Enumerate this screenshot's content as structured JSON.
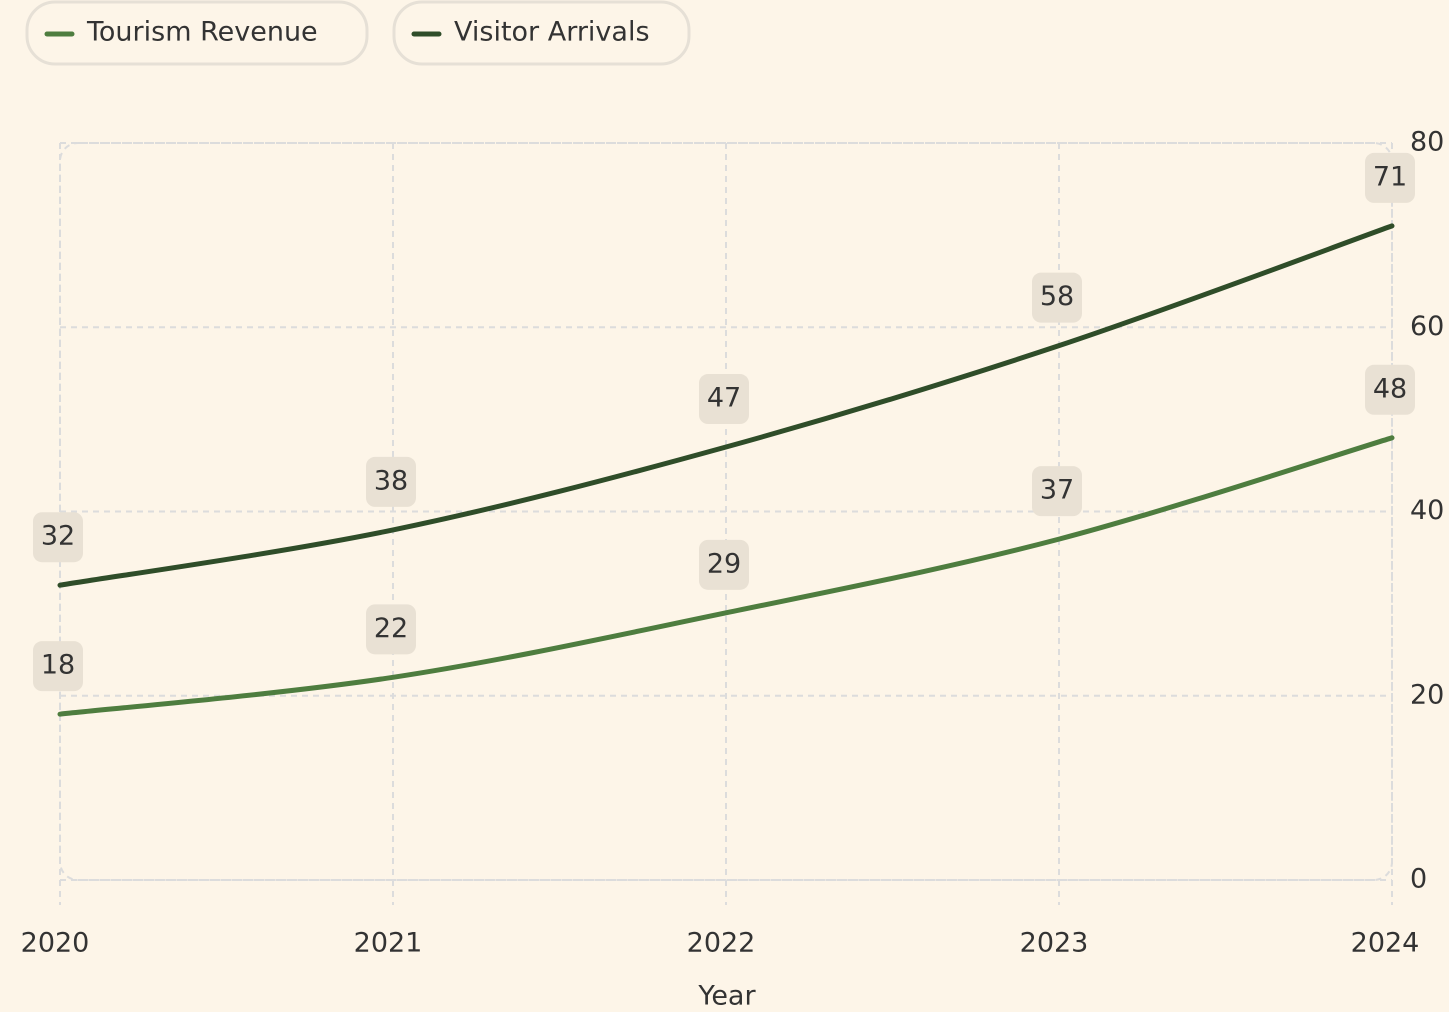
{
  "chart_data": {
    "type": "line",
    "x_label": "Year",
    "categories": [
      "2020",
      "2021",
      "2022",
      "2023",
      "2024"
    ],
    "series": [
      {
        "name": "Tourism Revenue",
        "color": "#4e7d3f",
        "values": [
          18,
          22,
          29,
          37,
          48
        ]
      },
      {
        "name": "Visitor Arrivals",
        "color": "#2f4d29",
        "values": [
          32,
          38,
          47,
          58,
          71
        ]
      }
    ],
    "ylim": [
      0,
      80
    ],
    "yticks": [
      0,
      20,
      40,
      60,
      80
    ],
    "grid": true,
    "legend": "top-left"
  }
}
